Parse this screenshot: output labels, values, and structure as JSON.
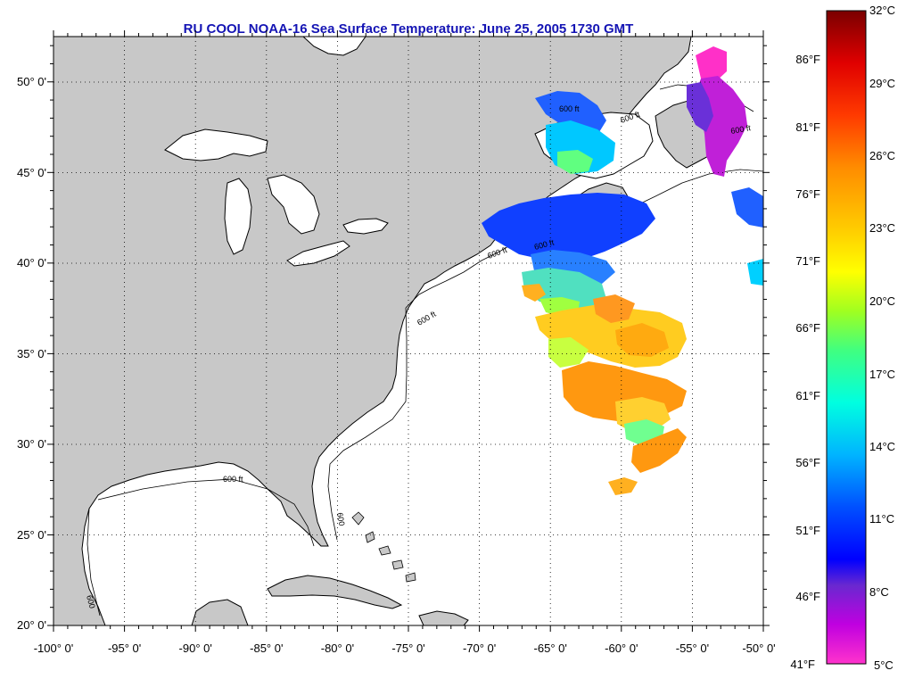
{
  "title": "RU COOL  NOAA-16  Sea Surface Temperature:  June 25, 2005 1730 GMT",
  "map": {
    "lon_range": [
      -100,
      -50
    ],
    "lat_range": [
      20,
      52.5
    ],
    "lon_ticks": [
      "-100° 0'",
      "-95° 0'",
      "-90° 0'",
      "-85° 0'",
      "-80° 0'",
      "-75° 0'",
      "-70° 0'",
      "-65° 0'",
      "-60° 0'",
      "-55° 0'",
      "-50° 0'"
    ],
    "lat_ticks": [
      "20° 0'",
      "25° 0'",
      "30° 0'",
      "35° 0'",
      "40° 0'",
      "45° 0'",
      "50° 0'"
    ],
    "land_color": "#c8c8c8",
    "ocean_color": "#ffffff",
    "grid": "dotted",
    "contour_labels": [
      "600 ft",
      "600 ft",
      "600",
      "600 ft",
      "600 ft",
      "600 ft",
      "600",
      "600 ft",
      "600 ft"
    ]
  },
  "colorbar": {
    "celsius_labels": [
      "32°C",
      "29°C",
      "26°C",
      "23°C",
      "20°C",
      "17°C",
      "14°C",
      "11°C",
      "8°C",
      "5°C"
    ],
    "fahrenheit_labels": [
      "86°F",
      "81°F",
      "76°F",
      "71°F",
      "66°F",
      "61°F",
      "56°F",
      "51°F",
      "46°F",
      "41°F"
    ],
    "celsius_range": [
      5,
      32
    ],
    "colors_top_to_bottom": [
      "#8b0000",
      "#ff0000",
      "#ff8c00",
      "#ffff00",
      "#7fff00",
      "#00ffff",
      "#0096ff",
      "#0000ff",
      "#6a0dad",
      "#ff00ff"
    ]
  }
}
